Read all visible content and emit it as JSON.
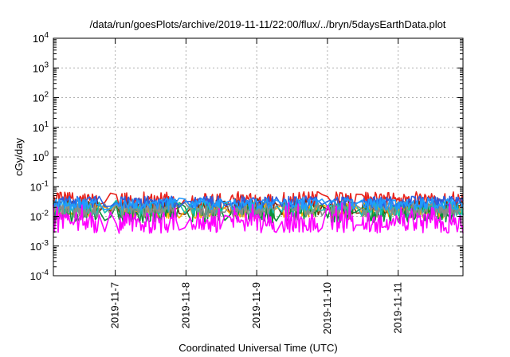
{
  "chart_data": {
    "type": "line",
    "title": "/data/run/goesPlots/archive/2019-11-11/22:00/flux/../bryn/5daysEarthData.plot",
    "xlabel": "Coordinated Universal Time (UTC)",
    "ylabel": "cGy/day",
    "yscale": "log",
    "ylim": [
      0.0001,
      10000
    ],
    "xlim": [
      "2019-11-06 03:00",
      "2019-11-11 22:00"
    ],
    "grid": true,
    "legend": "none",
    "y_ticks": [
      {
        "base": "10",
        "exp": "-4",
        "value": 0.0001
      },
      {
        "base": "10",
        "exp": "-3",
        "value": 0.001
      },
      {
        "base": "10",
        "exp": "-2",
        "value": 0.01
      },
      {
        "base": "10",
        "exp": "-1",
        "value": 0.1
      },
      {
        "base": "10",
        "exp": "0",
        "value": 1
      },
      {
        "base": "10",
        "exp": "1",
        "value": 10
      },
      {
        "base": "10",
        "exp": "2",
        "value": 100
      },
      {
        "base": "10",
        "exp": "3",
        "value": 1000
      },
      {
        "base": "10",
        "exp": "4",
        "value": 10000
      }
    ],
    "x_ticks": [
      "2019-11-7",
      "2019-11-8",
      "2019-11-9",
      "2019-11-10",
      "2019-11-11"
    ],
    "data_gaps": [
      [
        "2019-11-06 18:00",
        "2019-11-07 01:00"
      ],
      [
        "2019-11-07 21:00",
        "2019-11-08 02:00"
      ],
      [
        "2019-11-08 12:00",
        "2019-11-08 15:00"
      ],
      [
        "2019-11-09 06:00",
        "2019-11-09 09:00"
      ],
      [
        "2019-11-09 21:00",
        "2019-11-10 01:00"
      ],
      [
        "2019-11-10 09:00",
        "2019-11-10 12:00"
      ]
    ],
    "series": [
      {
        "color": "#e8221b",
        "center": 0.034,
        "spread": 0.3,
        "spike_max": 0.07
      },
      {
        "color": "#7f2a00",
        "center": 0.02,
        "spread": 0.25,
        "spike_max": 0.04
      },
      {
        "color": "#ffaa00",
        "center": 0.015,
        "spread": 0.25,
        "spike_max": 0.03
      },
      {
        "color": "#0f8f3a",
        "center": 0.012,
        "spread": 0.3,
        "spike_max": 0.03
      },
      {
        "color": "#18c2b0",
        "center": 0.018,
        "spread": 0.25,
        "spike_max": 0.035
      },
      {
        "color": "#8a8a8a",
        "center": 0.016,
        "spread": 0.25,
        "spike_max": 0.03
      },
      {
        "color": "#2a5fe0",
        "center": 0.03,
        "spread": 0.2,
        "spike_max": 0.05
      },
      {
        "color": "#1f9bff",
        "center": 0.026,
        "spread": 0.2,
        "spike_max": 0.045
      },
      {
        "color": "#ff00ff",
        "center": 0.006,
        "spread": 0.35,
        "spike_max": 0.03
      }
    ]
  }
}
